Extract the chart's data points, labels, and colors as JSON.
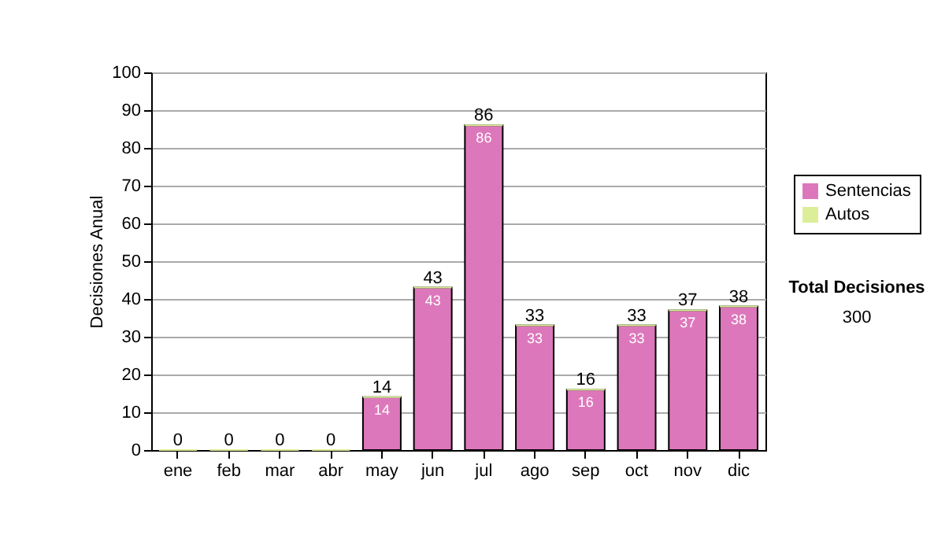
{
  "chart_data": {
    "type": "bar",
    "stacked": true,
    "ylabel": "Decisiones Anual",
    "categories": [
      "ene",
      "feb",
      "mar",
      "abr",
      "may",
      "jun",
      "jul",
      "ago",
      "sep",
      "oct",
      "nov",
      "dic"
    ],
    "series": [
      {
        "name": "Sentencias",
        "color": "#dd77bb",
        "values": [
          0,
          0,
          0,
          0,
          14,
          43,
          86,
          33,
          16,
          33,
          37,
          38
        ],
        "value_labels": [
          null,
          null,
          null,
          null,
          "14",
          "43",
          "86",
          "33",
          "16",
          "33",
          "37",
          "38"
        ]
      },
      {
        "name": "Autos",
        "color": "#ddee99",
        "values": [
          0,
          0,
          0,
          0,
          0,
          0,
          0,
          0,
          0,
          0,
          0,
          0
        ]
      }
    ],
    "totals": [
      "0",
      "0",
      "0",
      "0",
      "14",
      "43",
      "86",
      "33",
      "16",
      "33",
      "37",
      "38"
    ],
    "ylim": [
      0,
      100
    ],
    "yticks": [
      0,
      10,
      20,
      30,
      40,
      50,
      60,
      70,
      80,
      90,
      100
    ],
    "grid": "y",
    "legend": "right",
    "annotations": [
      "Total Decisiones",
      "300"
    ]
  }
}
